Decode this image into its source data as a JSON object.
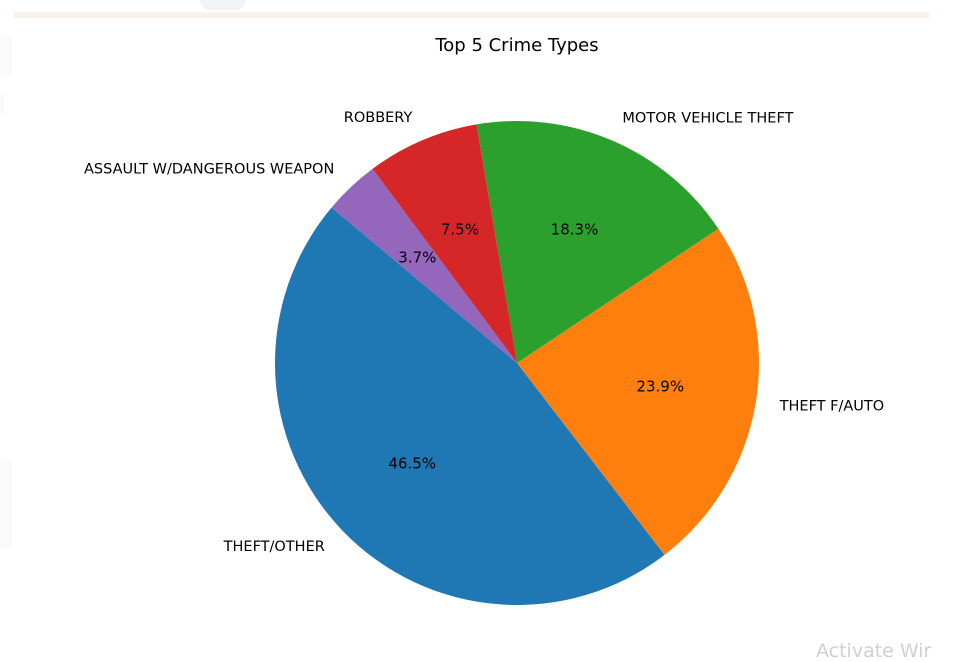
{
  "watermark": "Activate Wir",
  "chart_data": {
    "type": "pie",
    "title": "Top 5 Crime Types",
    "start_angle_deg": 140,
    "direction": "counterclockwise",
    "slices": [
      {
        "label": "THEFT/OTHER",
        "value": 46.5,
        "pct_label": "46.5%",
        "color": "#1f77b4"
      },
      {
        "label": "THEFT F/AUTO",
        "value": 23.9,
        "pct_label": "23.9%",
        "color": "#ff7f0e"
      },
      {
        "label": "MOTOR VEHICLE THEFT",
        "value": 18.3,
        "pct_label": "18.3%",
        "color": "#2ca02c"
      },
      {
        "label": "ROBBERY",
        "value": 7.5,
        "pct_label": "7.5%",
        "color": "#d62728"
      },
      {
        "label": "ASSAULT W/DANGEROUS WEAPON",
        "value": 3.7,
        "pct_label": "3.7%",
        "color": "#9467bd"
      }
    ]
  }
}
